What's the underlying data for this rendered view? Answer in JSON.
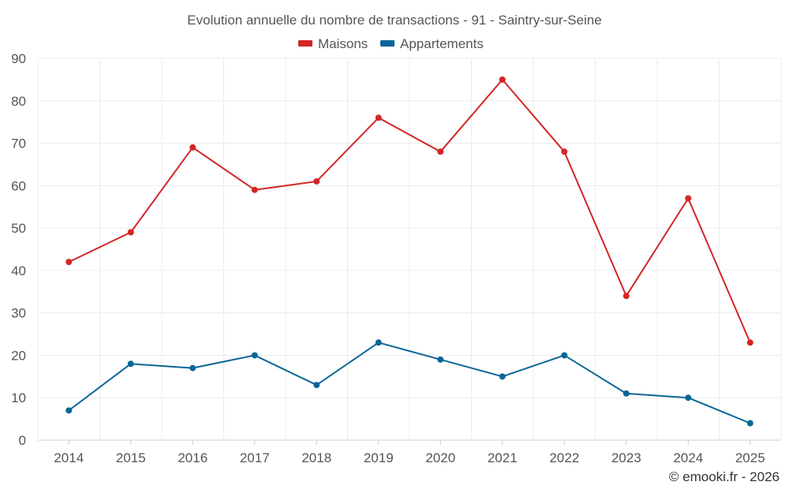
{
  "chart_data": {
    "type": "line",
    "title": "Evolution annuelle du nombre de transactions - 91 - Saintry-sur-Seine",
    "categories": [
      "2014",
      "2015",
      "2016",
      "2017",
      "2018",
      "2019",
      "2020",
      "2021",
      "2022",
      "2023",
      "2024",
      "2025"
    ],
    "series": [
      {
        "name": "Maisons",
        "color": "#d32626",
        "values": [
          42,
          49,
          69,
          59,
          61,
          76,
          68,
          85,
          68,
          34,
          57,
          23
        ]
      },
      {
        "name": "Appartements",
        "color": "#0b6698",
        "values": [
          7,
          18,
          17,
          20,
          13,
          23,
          19,
          15,
          20,
          11,
          10,
          4
        ]
      }
    ],
    "ylim": [
      0,
      90
    ],
    "yticks": [
      0,
      10,
      20,
      30,
      40,
      50,
      60,
      70,
      80,
      90
    ],
    "grid": true,
    "legend": "top-center",
    "xlabel": "",
    "ylabel": ""
  },
  "credit": "© emooki.fr - 2026"
}
